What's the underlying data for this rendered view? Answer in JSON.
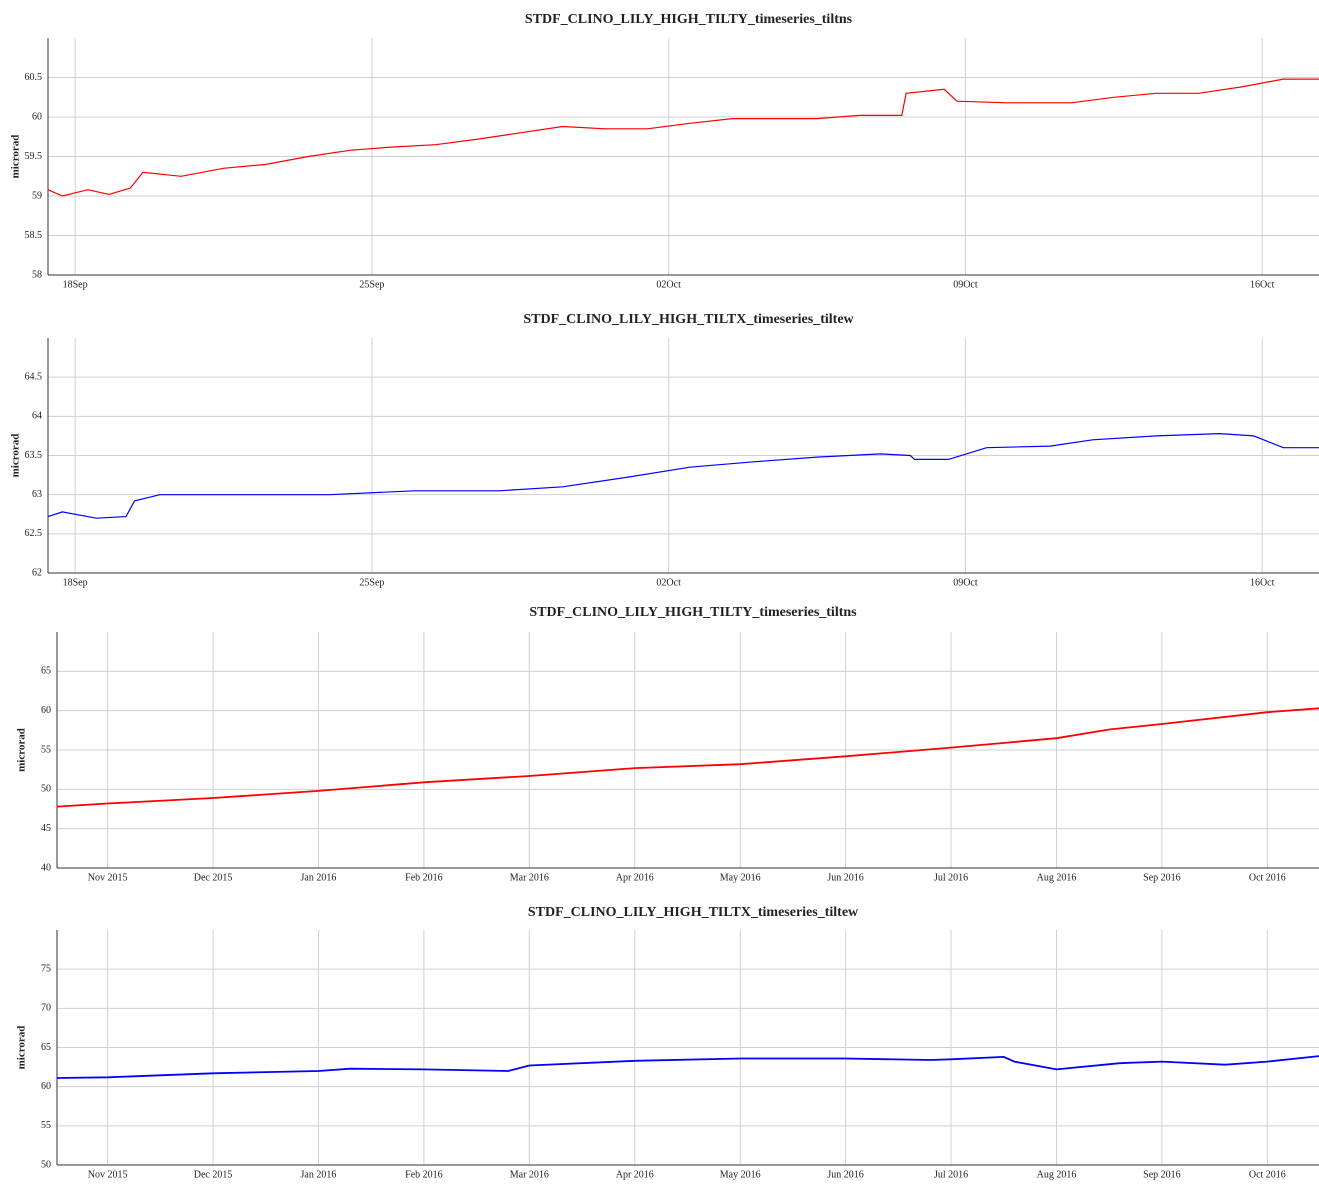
{
  "chart_data": [
    {
      "type": "line",
      "title": "STDF_CLINO_LILY_HIGH_TILTY_timeseries_tiltns",
      "ylabel": "microrad",
      "color": "#ff0000",
      "grid": true,
      "x": [
        17.36,
        17.7,
        18.3,
        18.8,
        19.3,
        19.6,
        20.5,
        21.5,
        22.5,
        23.5,
        24.5,
        25.5,
        26.5,
        27.5,
        28.5,
        29.5,
        30.5,
        31.5,
        32.5,
        33.5,
        34.5,
        35.5,
        36.5,
        37.5,
        37.6,
        38.5,
        38.8,
        40,
        41.5,
        42.5,
        43.5,
        44.5,
        45.5,
        46.5,
        47.34
      ],
      "values": [
        59.08,
        59.0,
        59.08,
        59.02,
        59.1,
        59.3,
        59.25,
        59.35,
        59.4,
        59.5,
        59.58,
        59.62,
        59.65,
        59.72,
        59.8,
        59.88,
        59.85,
        59.85,
        59.92,
        59.98,
        59.98,
        59.98,
        60.02,
        60.02,
        60.3,
        60.35,
        60.2,
        60.18,
        60.18,
        60.25,
        60.3,
        60.3,
        60.38,
        60.48,
        60.48
      ],
      "xlim": [
        17.36,
        47.34
      ],
      "xticks": [
        {
          "value": 18,
          "label": "18Sep"
        },
        {
          "value": 25,
          "label": "25Sep"
        },
        {
          "value": 32,
          "label": "02Oct"
        },
        {
          "value": 39,
          "label": "09Oct"
        },
        {
          "value": 46,
          "label": "16Oct"
        }
      ],
      "ylim": [
        58,
        61
      ],
      "yticks": [
        58,
        58.5,
        59,
        59.5,
        60,
        60.5
      ]
    },
    {
      "type": "line",
      "title": "STDF_CLINO_LILY_HIGH_TILTX_timeseries_tiltew",
      "ylabel": "microrad",
      "color": "#0000ff",
      "grid": true,
      "x": [
        17.36,
        17.7,
        18.5,
        19.2,
        19.4,
        20,
        22,
        24,
        26,
        28,
        29.5,
        31,
        32.5,
        34,
        35.5,
        37,
        37.7,
        37.8,
        38.6,
        39.5,
        41,
        42,
        43.5,
        45,
        45.8,
        46.5,
        47.34
      ],
      "values": [
        62.72,
        62.78,
        62.7,
        62.72,
        62.92,
        63.0,
        63.0,
        63.0,
        63.05,
        63.05,
        63.1,
        63.22,
        63.35,
        63.42,
        63.48,
        63.52,
        63.5,
        63.45,
        63.45,
        63.6,
        63.62,
        63.7,
        63.75,
        63.78,
        63.75,
        63.6,
        63.6
      ],
      "xlim": [
        17.36,
        47.34
      ],
      "xticks": [
        {
          "value": 18,
          "label": "18Sep"
        },
        {
          "value": 25,
          "label": "25Sep"
        },
        {
          "value": 32,
          "label": "02Oct"
        },
        {
          "value": 39,
          "label": "09Oct"
        },
        {
          "value": 46,
          "label": "16Oct"
        }
      ],
      "ylim": [
        62,
        65
      ],
      "yticks": [
        62,
        62.5,
        63,
        63.5,
        64,
        64.5
      ]
    },
    {
      "type": "line",
      "title": "STDF_CLINO_LILY_HIGH_TILTY_timeseries_tiltns",
      "ylabel": "microrad",
      "color": "#ff0000",
      "grid": true,
      "x": [
        10.52,
        11,
        12,
        13,
        14,
        15,
        16,
        17,
        18,
        19,
        20,
        20.5,
        21,
        22,
        22.49
      ],
      "values": [
        47.8,
        48.2,
        48.9,
        49.8,
        50.9,
        51.7,
        52.7,
        53.2,
        54.2,
        55.3,
        56.5,
        57.6,
        58.3,
        59.8,
        60.3
      ],
      "xlim": [
        10.52,
        22.49
      ],
      "xticks": [
        {
          "value": 11,
          "label": "Nov 2015"
        },
        {
          "value": 12,
          "label": "Dec 2015"
        },
        {
          "value": 13,
          "label": "Jan 2016"
        },
        {
          "value": 14,
          "label": "Feb 2016"
        },
        {
          "value": 15,
          "label": "Mar 2016"
        },
        {
          "value": 16,
          "label": "Apr 2016"
        },
        {
          "value": 17,
          "label": "May 2016"
        },
        {
          "value": 18,
          "label": "Jun 2016"
        },
        {
          "value": 19,
          "label": "Jul 2016"
        },
        {
          "value": 20,
          "label": "Aug 2016"
        },
        {
          "value": 21,
          "label": "Sep 2016"
        },
        {
          "value": 22,
          "label": "Oct 2016"
        }
      ],
      "ylim": [
        40,
        70
      ],
      "yticks": [
        40,
        45,
        50,
        55,
        60,
        65
      ]
    },
    {
      "type": "line",
      "title": "STDF_CLINO_LILY_HIGH_TILTX_timeseries_tiltew",
      "ylabel": "microrad",
      "color": "#0000ff",
      "grid": true,
      "x": [
        10.52,
        11,
        12,
        13,
        13.3,
        14,
        14.8,
        15,
        16,
        17,
        18,
        18.8,
        19,
        19.5,
        19.6,
        20,
        20.6,
        21,
        21.6,
        22,
        22.49
      ],
      "values": [
        61.1,
        61.2,
        61.7,
        62.0,
        62.3,
        62.2,
        62.0,
        62.7,
        63.3,
        63.6,
        63.6,
        63.4,
        63.5,
        63.8,
        63.2,
        62.2,
        63.0,
        63.2,
        62.8,
        63.2,
        63.9
      ],
      "xlim": [
        10.52,
        22.49
      ],
      "xticks": [
        {
          "value": 11,
          "label": "Nov 2015"
        },
        {
          "value": 12,
          "label": "Dec 2015"
        },
        {
          "value": 13,
          "label": "Jan 2016"
        },
        {
          "value": 14,
          "label": "Feb 2016"
        },
        {
          "value": 15,
          "label": "Mar 2016"
        },
        {
          "value": 16,
          "label": "Apr 2016"
        },
        {
          "value": 17,
          "label": "May 2016"
        },
        {
          "value": 18,
          "label": "Jun 2016"
        },
        {
          "value": 19,
          "label": "Jul 2016"
        },
        {
          "value": 20,
          "label": "Aug 2016"
        },
        {
          "value": 21,
          "label": "Sep 2016"
        },
        {
          "value": 22,
          "label": "Oct 2016"
        }
      ],
      "ylim": [
        50,
        80
      ],
      "yticks": [
        50,
        55,
        60,
        65,
        70,
        75
      ]
    }
  ]
}
